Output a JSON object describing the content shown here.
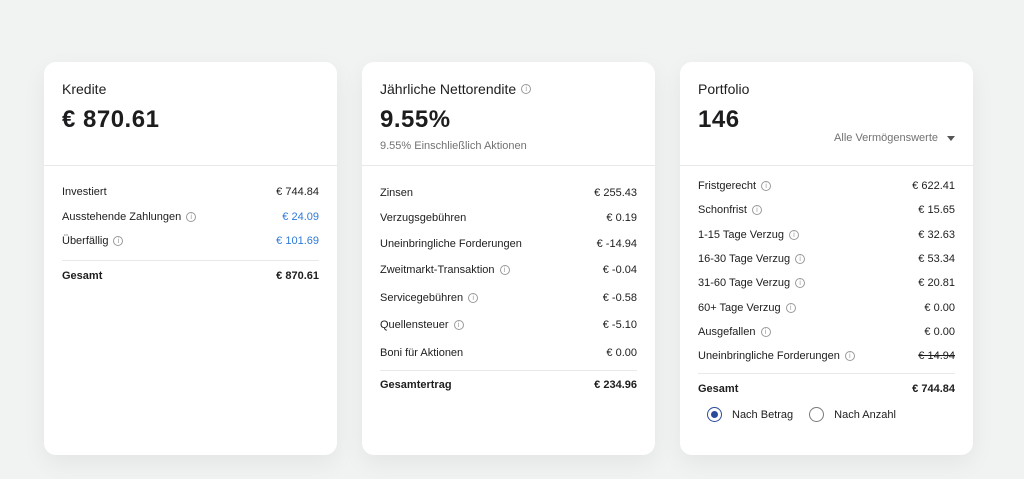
{
  "kredite": {
    "title": "Kredite",
    "value": "€ 870.61",
    "rows": [
      {
        "label": "Investiert",
        "value": "€ 744.84"
      },
      {
        "label": "Ausstehende Zahlungen",
        "value": "€ 24.09"
      },
      {
        "label": "Überfällig",
        "value": "€ 101.69"
      }
    ],
    "total": {
      "label": "Gesamt",
      "value": "€ 870.61"
    },
    "accent_color": "#2f7ad9"
  },
  "rendite": {
    "title": "Jährliche Nettorendite",
    "value": "9.55%",
    "subtitle": "9.55% Einschließlich Aktionen",
    "rows": [
      {
        "label": "Zinsen",
        "value": "€ 255.43"
      },
      {
        "label": "Verzugsgebühren",
        "value": "€ 0.19"
      },
      {
        "label": "Uneinbringliche Forderungen",
        "value": "€ -14.94"
      },
      {
        "label": "Zweitmarkt-Transaktion",
        "value": "€ -0.04"
      },
      {
        "label": "Servicegebühren",
        "value": "€ -0.58"
      },
      {
        "label": "Quellensteuer",
        "value": "€ -5.10"
      },
      {
        "label": "Boni für Aktionen",
        "value": "€ 0.00"
      }
    ],
    "total": {
      "label": "Gesamtertrag",
      "value": "€ 234.96"
    }
  },
  "portfolio": {
    "title": "Portfolio",
    "value": "146",
    "dropdown": "Alle Vermögenswerte",
    "rows": [
      {
        "label": "Fristgerecht",
        "value": "€ 622.41"
      },
      {
        "label": "Schonfrist",
        "value": "€ 15.65"
      },
      {
        "label": "1-15 Tage Verzug",
        "value": "€ 32.63"
      },
      {
        "label": "16-30 Tage Verzug",
        "value": "€ 53.34"
      },
      {
        "label": "31-60 Tage Verzug",
        "value": "€ 20.81"
      },
      {
        "label": "60+ Tage Verzug",
        "value": "€ 0.00"
      },
      {
        "label": "Ausgefallen",
        "value": "€ 0.00"
      },
      {
        "label": "Uneinbringliche Forderungen",
        "value": "€ 14.94"
      }
    ],
    "total": {
      "label": "Gesamt",
      "value": "€ 744.84"
    },
    "radio": {
      "option1": "Nach Betrag",
      "option2": "Nach Anzahl",
      "selected": "Nach Betrag"
    },
    "radio_color": "#2a4a9b"
  },
  "icons": {
    "info": "i"
  }
}
